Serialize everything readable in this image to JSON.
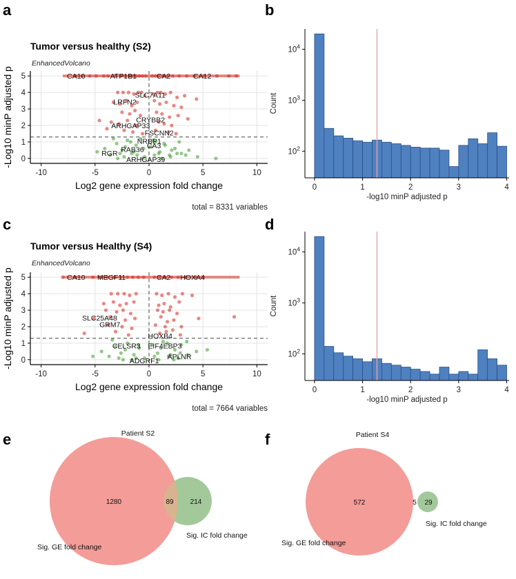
{
  "panels": {
    "a": {
      "letter": "a",
      "title": "Tumor versus healthy (S2)",
      "subtitle": "EnhancedVolcano",
      "caption": "total = 8331 variables"
    },
    "b": {
      "letter": "b"
    },
    "c": {
      "letter": "c",
      "title": "Tumor versus Healthy (S4)",
      "subtitle": "EnhancedVolcano",
      "caption": "total = 7664 variables"
    },
    "d": {
      "letter": "d"
    },
    "e": {
      "letter": "e"
    },
    "f": {
      "letter": "f"
    }
  },
  "colors": {
    "red": "#d6281d",
    "green": "#3f9a2d",
    "bar": "#4f81c0",
    "barEdge": "#2a4f86",
    "vline": "#e9a3a3",
    "vennRed": "#f28b86",
    "vennGreen": "#93c08a",
    "vennOverlap": "#d9b38f"
  },
  "chart_data": [
    {
      "id": "a",
      "type": "scatter",
      "title": "Tumor versus healthy (S2)",
      "subtitle": "EnhancedVolcano",
      "xlabel": "Log2 gene expression fold change",
      "ylabel": "-Log10 minP adjusted p",
      "xlim": [
        -11,
        11
      ],
      "ylim": [
        -0.3,
        5.3
      ],
      "xticks": [
        "-10",
        "-5",
        "0",
        "5",
        "10"
      ],
      "xtickvals": [
        -10,
        -5,
        0,
        5,
        10
      ],
      "yticks": [
        "0",
        "1",
        "2",
        "3",
        "4",
        "5"
      ],
      "ytickvals": [
        0,
        1,
        2,
        3,
        4,
        5
      ],
      "threshold_y": 1.3,
      "threshold_x": 0,
      "caption": "total = 8331 variables",
      "labels": [
        {
          "text": "CA10",
          "x": -7.6,
          "y": 5
        },
        {
          "text": "ATP1B1",
          "x": -3.6,
          "y": 5
        },
        {
          "text": "CA2",
          "x": 0.7,
          "y": 5
        },
        {
          "text": "CA12",
          "x": 4.1,
          "y": 5
        },
        {
          "text": "SLC7A11",
          "x": -1.3,
          "y": 3.85
        },
        {
          "text": "LRFN2",
          "x": -3.3,
          "y": 3.45
        },
        {
          "text": "CRYBB2",
          "x": -1.2,
          "y": 2.35
        },
        {
          "text": "ARHGAP33",
          "x": -3.5,
          "y": 2.0
        },
        {
          "text": "FSCNN2",
          "x": -0.4,
          "y": 1.55
        },
        {
          "text": "NRBP1",
          "x": -1.1,
          "y": 1.05
        },
        {
          "text": "CA3",
          "x": -0.2,
          "y": 0.78
        },
        {
          "text": "RAB36",
          "x": -2.6,
          "y": 0.55
        },
        {
          "text": "RGR",
          "x": -4.4,
          "y": 0.32
        },
        {
          "text": "ARHGAP39",
          "x": -2.1,
          "y": -0.05
        }
      ],
      "series": [
        {
          "name": "significant",
          "color": "red",
          "x": [
            -6.8,
            -6.2,
            -5.5,
            -4.9,
            -4.2,
            -3.8,
            -3.1,
            -2.6,
            -2.2,
            -1.8,
            -1.5,
            -1.2,
            -0.9,
            -0.6,
            -0.3,
            0.3,
            0.6,
            0.9,
            1.3,
            1.7,
            2.2,
            2.8,
            3.5,
            4.2,
            5.1,
            6.3,
            7.4,
            8.1,
            -2.9,
            -2.4,
            -1.9,
            -1.4,
            -1.0,
            -0.7,
            -0.4,
            0.4,
            0.8,
            1.1,
            1.5,
            2.0,
            2.6,
            3.3,
            -3.3,
            -2.7,
            -2.1,
            -1.6,
            -1.1,
            0.5,
            1.0,
            1.6,
            2.3,
            3.0,
            4.4,
            -2.5,
            -1.8,
            -1.3,
            -0.8,
            0.7,
            1.2,
            1.9,
            2.7,
            -4.6,
            -3.5,
            -2.8,
            -2.0,
            -1.2,
            0.9,
            1.4,
            2.1,
            3.6,
            -3.9,
            -2.3,
            -1.5,
            -0.6,
            0.6,
            1.8,
            2.5
          ],
          "y": [
            5,
            5,
            5,
            5,
            5,
            5,
            5,
            5,
            5,
            5,
            5,
            5,
            5,
            5,
            5,
            5,
            5,
            5,
            5,
            5,
            5,
            5,
            5,
            5,
            5,
            5,
            5,
            5,
            4.0,
            4.0,
            4.0,
            3.9,
            4.0,
            4.0,
            3.8,
            3.9,
            4.0,
            4.0,
            3.9,
            4.0,
            3.7,
            3.8,
            3.4,
            3.3,
            3.5,
            3.2,
            3.4,
            3.5,
            3.3,
            3.4,
            3.2,
            3.1,
            3.6,
            2.8,
            2.7,
            2.9,
            2.6,
            2.8,
            2.7,
            2.5,
            2.6,
            2.3,
            2.2,
            2.1,
            2.3,
            2.0,
            2.2,
            2.1,
            2.0,
            2.4,
            1.8,
            1.7,
            1.6,
            1.5,
            1.7,
            1.6,
            1.5
          ]
        },
        {
          "name": "not significant",
          "color": "green",
          "x": [
            -4.8,
            -4.1,
            -3.6,
            -3.0,
            -2.5,
            -2.0,
            -1.6,
            -1.2,
            -0.8,
            -0.4,
            0.2,
            0.6,
            1.0,
            1.4,
            1.9,
            2.4,
            3.0,
            3.7,
            4.5,
            6.2,
            -3.3,
            -2.7,
            -2.2,
            -1.7,
            -1.1,
            -0.5,
            0.4,
            0.9,
            1.5,
            2.1,
            2.8,
            3.4,
            -2.9,
            -2.3,
            -1.4,
            -0.6,
            0.5,
            1.2,
            2.0,
            2.6
          ],
          "y": [
            0.4,
            0.6,
            0.2,
            0.9,
            0.5,
            1.1,
            0.3,
            0.8,
            1.2,
            0.1,
            0.7,
            1.0,
            0.4,
            0.9,
            0.2,
            0.6,
            0.3,
            0.5,
            0.1,
            0.0,
            1.2,
            0.3,
            0.7,
            1.0,
            0.2,
            0.6,
            1.1,
            0.3,
            0.8,
            0.5,
            1.0,
            0.2,
            0.0,
            0.1,
            0.4,
            0.0,
            0.2,
            0.0,
            0.1,
            0.3
          ]
        }
      ]
    },
    {
      "id": "b",
      "type": "bar",
      "xlabel": "-log10 minP adjusted p",
      "ylabel": "Count",
      "yscale": "log",
      "xlim": [
        -0.2,
        4.05
      ],
      "ylim": [
        30,
        25000
      ],
      "xticks": [
        "0",
        "1",
        "2",
        "3",
        "4"
      ],
      "xtickvals": [
        0,
        1,
        2,
        3,
        4
      ],
      "yticks": [
        "10^2",
        "10^3",
        "10^4"
      ],
      "ytickvals": [
        100,
        1000,
        10000
      ],
      "bin_width": 0.2,
      "bin_starts": [
        0,
        0.2,
        0.4,
        0.6,
        0.8,
        1.0,
        1.2,
        1.4,
        1.6,
        1.8,
        2.0,
        2.2,
        2.4,
        2.6,
        2.8,
        3.0,
        3.2,
        3.4,
        3.6,
        3.8
      ],
      "values": [
        20000,
        280,
        200,
        180,
        160,
        150,
        165,
        150,
        140,
        130,
        120,
        115,
        115,
        105,
        50,
        130,
        175,
        140,
        230,
        125
      ],
      "vline_x": 1.3
    },
    {
      "id": "c",
      "type": "scatter",
      "title": "Tumor versus Healthy (S4)",
      "subtitle": "EnhancedVolcano",
      "xlabel": "Log2 gene expression fold change",
      "ylabel": "-Log10 minP adjusted p",
      "xlim": [
        -11,
        11
      ],
      "ylim": [
        -0.3,
        5.3
      ],
      "xticks": [
        "-10",
        "-5",
        "0",
        "5",
        "10"
      ],
      "xtickvals": [
        -10,
        -5,
        0,
        5,
        10
      ],
      "yticks": [
        "0",
        "1",
        "2",
        "3",
        "4",
        "5"
      ],
      "ytickvals": [
        0,
        1,
        2,
        3,
        4,
        5
      ],
      "threshold_y": 1.3,
      "threshold_x": 0,
      "caption": "total = 7664 variables",
      "labels": [
        {
          "text": "CA10",
          "x": -7.6,
          "y": 5
        },
        {
          "text": "MEGF11",
          "x": -4.8,
          "y": 5
        },
        {
          "text": "CA2",
          "x": 0.7,
          "y": 5
        },
        {
          "text": "HOXA4",
          "x": 2.9,
          "y": 5
        },
        {
          "text": "SLC25A48",
          "x": -6.2,
          "y": 2.55
        },
        {
          "text": "GRM7",
          "x": -4.6,
          "y": 2.15
        },
        {
          "text": "HOXB4",
          "x": -0.1,
          "y": 1.45
        },
        {
          "text": "CELSR3",
          "x": -3.4,
          "y": 0.85
        },
        {
          "text": "EIF4EBP3",
          "x": -0.1,
          "y": 0.85
        },
        {
          "text": "APLNR",
          "x": 1.7,
          "y": 0.2
        },
        {
          "text": "ADGRF1",
          "x": -1.8,
          "y": -0.05
        }
      ],
      "series": [
        {
          "name": "significant",
          "color": "red",
          "x": [
            -8.0,
            -6.8,
            -5.2,
            -4.5,
            -3.9,
            -3.2,
            -2.6,
            -2.0,
            -1.5,
            -1.0,
            -0.5,
            0.5,
            1.0,
            1.5,
            2.1,
            2.7,
            3.4,
            4.3,
            5.0,
            -3.5,
            -2.9,
            -2.3,
            -1.8,
            -1.2,
            0.7,
            1.2,
            1.8,
            2.4,
            3.1,
            4.0,
            -4.2,
            -3.3,
            -2.7,
            -2.1,
            -1.4,
            0.9,
            1.4,
            2.0,
            2.8,
            -4.0,
            -3.0,
            -2.4,
            -1.7,
            0.8,
            1.3,
            1.9,
            2.6,
            7.9,
            -5.1,
            -3.6,
            -2.2,
            -1.3,
            1.1,
            1.7,
            2.3,
            4.6,
            -3.8,
            -2.5,
            -1.6,
            0.6,
            1.5,
            2.2,
            3.0,
            -6.0,
            -3.1,
            -1.9,
            1.0,
            1.6,
            2.9
          ],
          "y": [
            5,
            5,
            5,
            5,
            5,
            5,
            5,
            5,
            5,
            5,
            5,
            5,
            5,
            5,
            5,
            5,
            5,
            5,
            5,
            4.0,
            4.0,
            4.0,
            3.9,
            4.0,
            4.0,
            3.9,
            4.0,
            3.8,
            4.0,
            3.9,
            3.4,
            3.5,
            3.3,
            3.4,
            3.5,
            3.3,
            3.4,
            3.2,
            3.5,
            3.0,
            2.9,
            3.0,
            2.8,
            3.0,
            2.9,
            3.0,
            2.8,
            2.6,
            2.5,
            2.6,
            2.4,
            2.5,
            2.6,
            2.3,
            2.4,
            2.5,
            2.1,
            2.0,
            1.9,
            2.1,
            2.0,
            1.8,
            2.0,
            1.6,
            1.7,
            1.5,
            1.6,
            1.7,
            1.5
          ]
        },
        {
          "name": "not significant",
          "color": "green",
          "x": [
            -4.4,
            -3.7,
            -3.1,
            -2.6,
            -2.0,
            -1.4,
            -0.9,
            -0.4,
            0.3,
            0.8,
            1.3,
            1.8,
            2.4,
            3.0,
            3.6,
            4.4,
            5.4,
            -3.4,
            -2.8,
            -2.2,
            -1.6,
            -1.0,
            0.5,
            1.1,
            1.7,
            2.3,
            2.9,
            3.5,
            -5.2,
            -2.4,
            -1.2,
            0.9,
            2.0,
            2.7
          ],
          "y": [
            0.5,
            0.2,
            0.8,
            0.4,
            1.0,
            0.3,
            0.7,
            0.1,
            0.9,
            0.4,
            1.1,
            0.2,
            0.6,
            0.9,
            0.3,
            0.5,
            0.6,
            1.2,
            0.1,
            0.6,
            0.0,
            0.9,
            0.2,
            0.7,
            1.0,
            0.0,
            0.4,
            1.1,
            0.2,
            0.0,
            0.1,
            0.0,
            0.3,
            0.1
          ]
        }
      ]
    },
    {
      "id": "d",
      "type": "bar",
      "xlabel": "-log10 minP adjusted p",
      "ylabel": "Count",
      "yscale": "log",
      "xlim": [
        -0.2,
        4.05
      ],
      "ylim": [
        30,
        25000
      ],
      "xticks": [
        "0",
        "1",
        "2",
        "3",
        "4"
      ],
      "xtickvals": [
        0,
        1,
        2,
        3,
        4
      ],
      "yticks": [
        "10^2",
        "10^3",
        "10^4"
      ],
      "ytickvals": [
        100,
        1000,
        10000
      ],
      "bin_width": 0.2,
      "bin_starts": [
        0,
        0.2,
        0.4,
        0.6,
        0.8,
        1.0,
        1.2,
        1.4,
        1.6,
        1.8,
        2.0,
        2.2,
        2.4,
        2.6,
        2.8,
        3.0,
        3.2,
        3.4,
        3.6,
        3.8
      ],
      "values": [
        20000,
        140,
        105,
        90,
        80,
        70,
        80,
        65,
        60,
        55,
        50,
        45,
        40,
        55,
        40,
        45,
        40,
        120,
        80,
        60
      ],
      "vline_x": 1.3
    },
    {
      "id": "e",
      "type": "venn",
      "sets": [
        "Patient S2",
        "Sig. GE fold change",
        "Sig. IC fold change"
      ],
      "title": "Patient S2",
      "label_a": "Sig. GE fold change",
      "label_b": "Sig. IC fold change",
      "only_a": 1280,
      "overlap": 89,
      "only_b": 214
    },
    {
      "id": "f",
      "type": "venn",
      "title": "Patient S4",
      "label_a": "Sig. GE fold change",
      "label_b": "Sig. IC fold change",
      "only_a": 572,
      "overlap": 5,
      "only_b": 29
    }
  ]
}
